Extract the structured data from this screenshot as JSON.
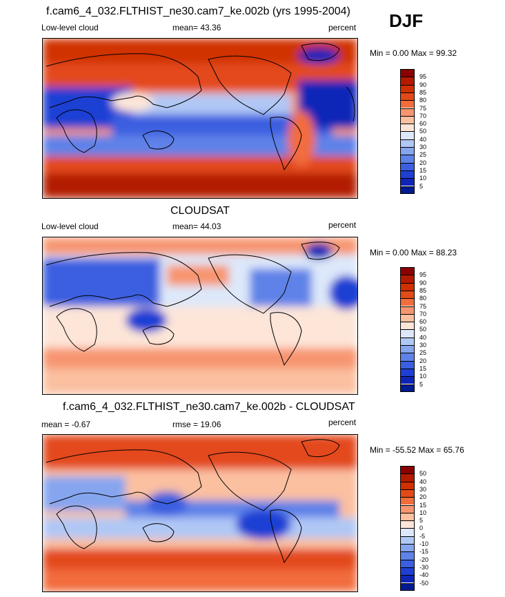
{
  "season": "DJF",
  "panels": [
    {
      "id": "model",
      "title": "f.cam6_4_032.FLTHIST_ne30.cam7_ke.002b (yrs 1995-2004)",
      "left_label": "Low-level cloud",
      "stat_label": "mean=  43.36",
      "units": "percent",
      "minmax": "Min =   0.00 Max =  99.32",
      "colorbar_ticks": [
        "95",
        "90",
        "85",
        "80",
        "75",
        "70",
        "60",
        "50",
        "40",
        "30",
        "25",
        "20",
        "15",
        "10",
        "5"
      ]
    },
    {
      "id": "obs",
      "title": "CLOUDSAT",
      "left_label": "Low-level cloud",
      "stat_label": "mean=  44.03",
      "units": "percent",
      "minmax": "Min =   0.00 Max =  88.23",
      "colorbar_ticks": [
        "95",
        "90",
        "85",
        "80",
        "75",
        "70",
        "60",
        "50",
        "40",
        "30",
        "25",
        "20",
        "15",
        "10",
        "5"
      ]
    },
    {
      "id": "diff",
      "title": "f.cam6_4_032.FLTHIST_ne30.cam7_ke.002b - CLOUDSAT",
      "left_label": "mean =  -0.67",
      "stat_label": "rmse =  19.06",
      "units": "percent",
      "minmax": "Min = -55.52 Max =  65.76",
      "colorbar_ticks": [
        "50",
        "40",
        "30",
        "20",
        "15",
        "10",
        "5",
        "0",
        "-5",
        "-10",
        "-15",
        "-20",
        "-30",
        "-40",
        "-50"
      ]
    }
  ],
  "colors": {
    "seq": [
      "#8b0000",
      "#b31a00",
      "#d03000",
      "#e34a1a",
      "#f26c3c",
      "#f79570",
      "#fbc0a0",
      "#fde5d8",
      "#dde8fa",
      "#b0c8f5",
      "#85a5ef",
      "#5e82e8",
      "#3b5fe0",
      "#1f3fd4",
      "#0e25b8",
      "#001a90"
    ],
    "diff": [
      "#8b0000",
      "#b31a00",
      "#d03000",
      "#e34a1a",
      "#f26c3c",
      "#f79570",
      "#fbc0a0",
      "#fde5d8",
      "#dde8fa",
      "#b0c8f5",
      "#85a5ef",
      "#5e82e8",
      "#3b5fe0",
      "#1f3fd4",
      "#0e25b8",
      "#001a90"
    ]
  }
}
